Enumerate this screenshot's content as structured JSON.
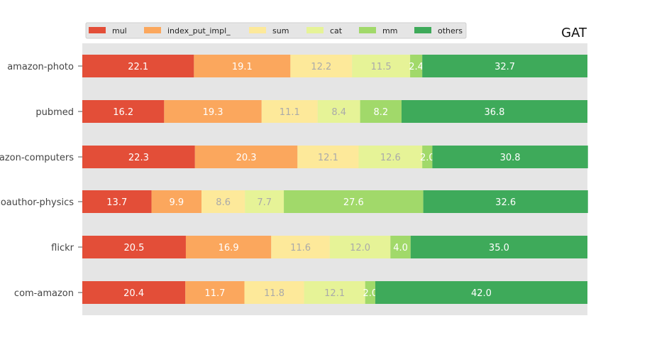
{
  "chart_data": {
    "type": "bar",
    "orientation": "horizontal",
    "stacked": true,
    "title": "GAT",
    "categories": [
      "amazon-photo",
      "pubmed",
      "amazon-computers",
      "coauthor-physics",
      "flickr",
      "com-amazon"
    ],
    "series": [
      {
        "name": "mul",
        "color": "#e34e38",
        "values": [
          22.1,
          16.2,
          22.3,
          13.7,
          20.5,
          20.4
        ]
      },
      {
        "name": "index_put_impl_",
        "color": "#fba75d",
        "values": [
          19.1,
          19.3,
          20.3,
          9.9,
          16.9,
          11.7
        ]
      },
      {
        "name": "sum",
        "color": "#fde99a",
        "values": [
          12.2,
          11.1,
          12.1,
          8.6,
          11.6,
          11.8
        ]
      },
      {
        "name": "cat",
        "color": "#e6f397",
        "values": [
          11.5,
          8.4,
          12.6,
          7.7,
          12.0,
          12.1
        ]
      },
      {
        "name": "mm",
        "color": "#a1d96a",
        "values": [
          2.4,
          8.2,
          2.0,
          27.6,
          4.0,
          2.0
        ]
      },
      {
        "name": "others",
        "color": "#3eaa5a",
        "values": [
          32.7,
          36.8,
          30.8,
          32.6,
          35.0,
          42.0
        ]
      }
    ],
    "label_colors": {
      "light": "#ffffff",
      "muted": "#aaaaaa"
    },
    "muted_series": [
      "sum",
      "cat"
    ],
    "xlim": [
      0,
      100
    ],
    "grid": false,
    "legend": "top-left",
    "background": "#e5e5e5"
  }
}
